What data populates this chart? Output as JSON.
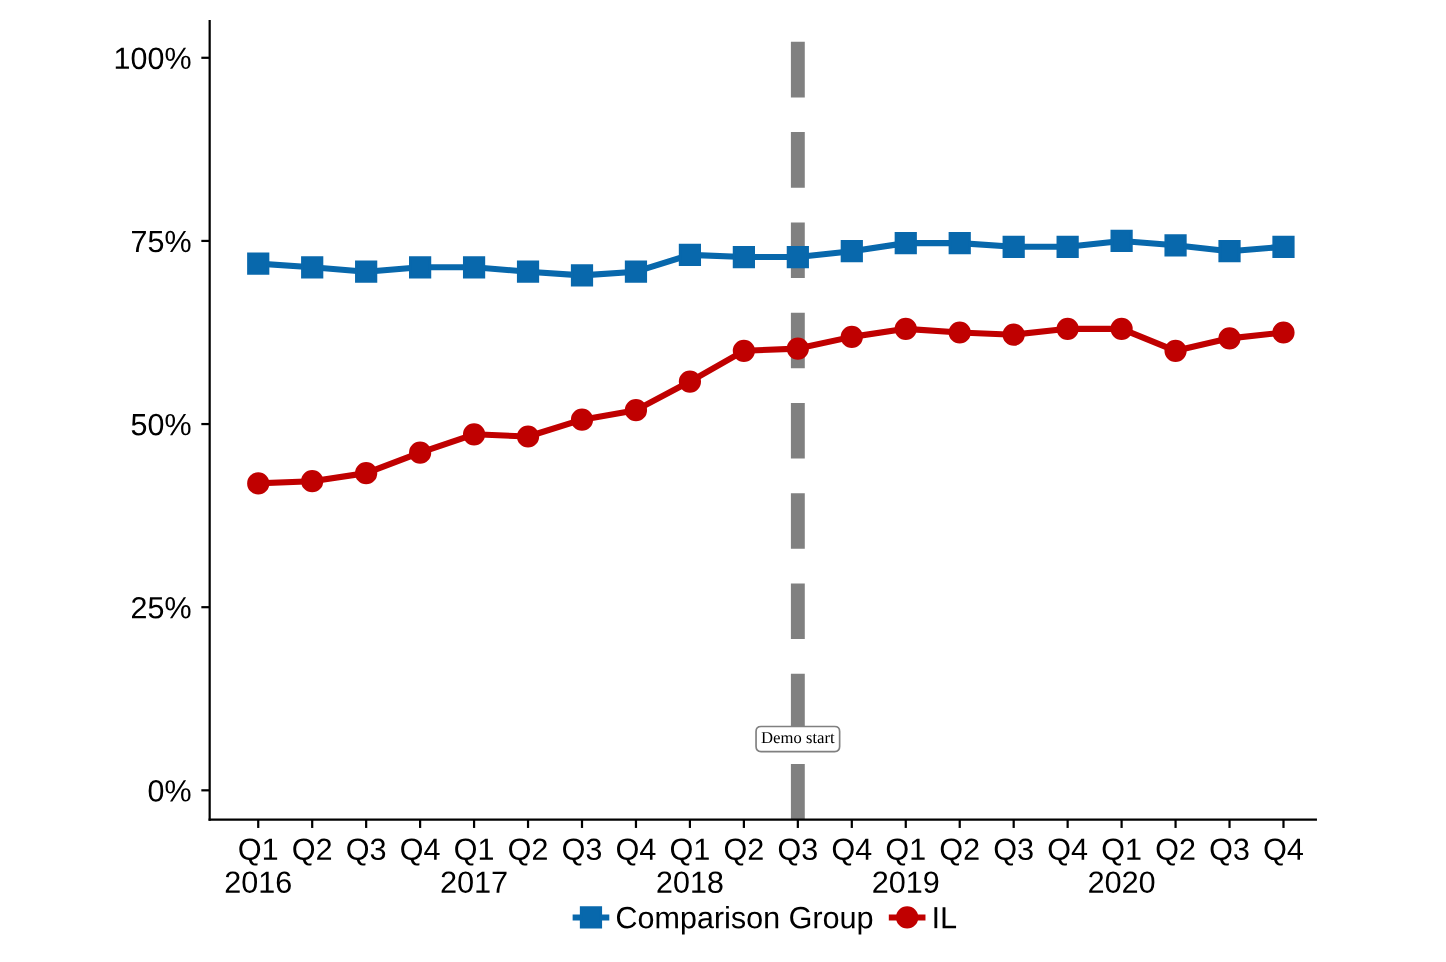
{
  "chart_data": {
    "type": "line",
    "categories": [
      "Q1\n2016",
      "Q2",
      "Q3",
      "Q4",
      "Q1\n2017",
      "Q2",
      "Q3",
      "Q4",
      "Q1\n2018",
      "Q2",
      "Q3",
      "Q4",
      "Q1\n2019",
      "Q2",
      "Q3",
      "Q4",
      "Q1\n2020",
      "Q2",
      "Q3",
      "Q4"
    ],
    "series": [
      {
        "name": "Comparison Group",
        "color": "#0868ac",
        "marker": "square",
        "values": [
          71.9,
          71.4,
          70.8,
          71.4,
          71.4,
          70.8,
          70.3,
          70.8,
          73.1,
          72.8,
          72.8,
          73.6,
          74.7,
          74.7,
          74.2,
          74.2,
          75.0,
          74.4,
          73.6,
          74.2
        ]
      },
      {
        "name": "IL",
        "color": "#c00000",
        "marker": "circle",
        "values": [
          41.9,
          42.2,
          43.3,
          46.1,
          48.6,
          48.3,
          50.6,
          51.9,
          55.8,
          60.0,
          60.3,
          61.9,
          63.0,
          62.5,
          62.2,
          63.0,
          63.0,
          60.0,
          61.7,
          62.5
        ]
      }
    ],
    "ylim": [
      -4,
      105
    ],
    "yticks": [
      {
        "value": 0,
        "label": "0%"
      },
      {
        "value": 25,
        "label": "25%"
      },
      {
        "value": 50,
        "label": "50%"
      },
      {
        "value": 75,
        "label": "75%"
      },
      {
        "value": 100,
        "label": "100%"
      }
    ],
    "annotations": [
      "Demo start"
    ],
    "legend": "bottom",
    "line_style": "solid"
  }
}
